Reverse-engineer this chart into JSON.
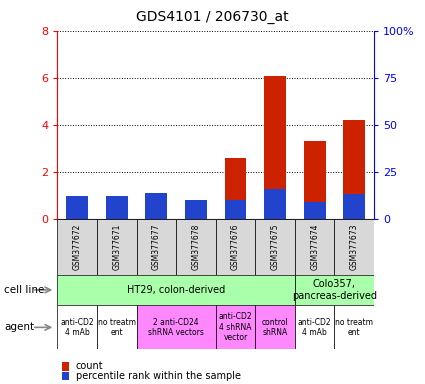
{
  "title": "GDS4101 / 206730_at",
  "samples": [
    "GSM377672",
    "GSM377671",
    "GSM377677",
    "GSM377678",
    "GSM377676",
    "GSM377675",
    "GSM377674",
    "GSM377673"
  ],
  "count_values": [
    0.65,
    0.62,
    0.88,
    0.37,
    2.6,
    6.08,
    3.33,
    4.2
  ],
  "percentile_values_scaled": [
    0.12,
    0.12,
    0.14,
    0.1,
    0.1,
    0.16,
    0.09,
    0.13
  ],
  "ylim_left": [
    0,
    8
  ],
  "ylim_right": [
    0,
    100
  ],
  "yticks_left": [
    0,
    2,
    4,
    6,
    8
  ],
  "yticks_right": [
    0,
    25,
    50,
    75,
    100
  ],
  "ytick_labels_right": [
    "0",
    "25",
    "50",
    "75",
    "100%"
  ],
  "bar_color_count": "#cc2200",
  "bar_color_pct": "#2244cc",
  "bar_width": 0.55,
  "cell_groups": [
    {
      "text": "HT29, colon-derived",
      "start": 0,
      "end": 6,
      "color": "#aaffaa"
    },
    {
      "text": "Colo357,\npancreas-derived",
      "start": 6,
      "end": 8,
      "color": "#aaffaa"
    }
  ],
  "agent_groups": [
    {
      "text": "anti-CD2\n4 mAb",
      "start": 0,
      "end": 1,
      "color": "#ffffff"
    },
    {
      "text": "no treatm\nent",
      "start": 1,
      "end": 2,
      "color": "#ffffff"
    },
    {
      "text": "2 anti-CD24\nshRNA vectors",
      "start": 2,
      "end": 4,
      "color": "#ff88ff"
    },
    {
      "text": "anti-CD2\n4 shRNA\nvector",
      "start": 4,
      "end": 5,
      "color": "#ff88ff"
    },
    {
      "text": "control\nshRNA",
      "start": 5,
      "end": 6,
      "color": "#ff88ff"
    },
    {
      "text": "anti-CD2\n4 mAb",
      "start": 6,
      "end": 7,
      "color": "#ffffff"
    },
    {
      "text": "no treatm\nent",
      "start": 7,
      "end": 8,
      "color": "#ffffff"
    }
  ],
  "legend_count_label": "count",
  "legend_pct_label": "percentile rank within the sample",
  "cell_line_row_label": "cell line",
  "agent_row_label": "agent",
  "background_gray": "#d8d8d8"
}
